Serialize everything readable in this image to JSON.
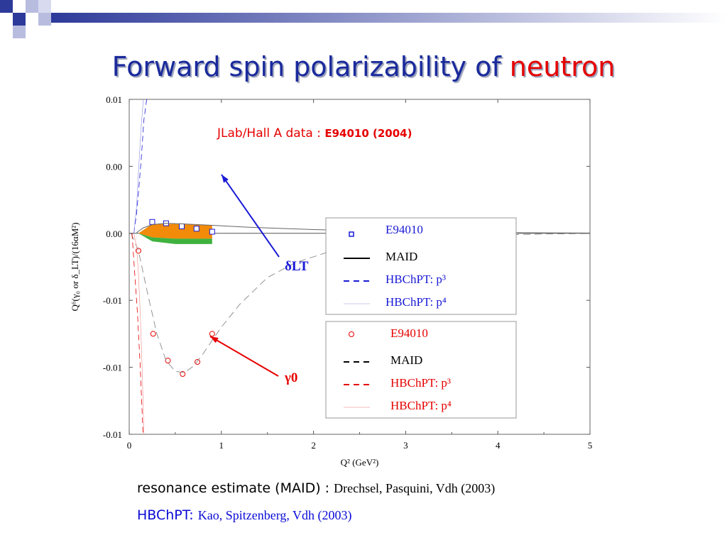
{
  "slide": {
    "title_main": "Forward spin polarizability of ",
    "title_highlight": "neutron",
    "credit_line1_key": "resonance estimate (MAID) : ",
    "credit_line1_value": "Drechsel, Pasquini, Vdh (2003)",
    "credit_line2_key": "HBChPT: ",
    "credit_line2_value": "Kao, Spitzenberg, Vdh (2003)"
  },
  "colors": {
    "title": "#1a2a9c",
    "title_highlight": "#e60000",
    "delta_series": "#1a1ad6",
    "gamma_series": "#e60000",
    "band_orange": "#f28a0a",
    "band_green": "#3fb23f"
  },
  "chart_data": {
    "type": "line",
    "annotation_title_a": "JLab/Hall A data : ",
    "annotation_title_b": "E94010 (2004)",
    "xlabel": "Q² (GeV²)",
    "ylabel": "Q⁶(γ₀ or δ_LT)/(16αM²)",
    "xlim": [
      0,
      5
    ],
    "ylim": [
      -0.015,
      0.01
    ],
    "x_ticks": [
      0,
      1,
      2,
      3,
      4,
      5
    ],
    "y_ticks": [
      {
        "value": 0.01,
        "label": "0.01"
      },
      {
        "value": 0.005,
        "label": "0.00"
      },
      {
        "value": 0.0,
        "label": "0.00"
      },
      {
        "value": -0.005,
        "label": "-0.01"
      },
      {
        "value": -0.01,
        "label": "-0.01"
      },
      {
        "value": -0.015,
        "label": "-0.01"
      }
    ],
    "arrow_labels": {
      "delta": "δLT",
      "gamma": "γ0"
    },
    "series": [
      {
        "name": "E94010",
        "group": "delta",
        "kind": "points",
        "marker": "square",
        "x": [
          0.25,
          0.4,
          0.57,
          0.73,
          0.9
        ],
        "y": [
          0.00085,
          0.00075,
          0.00052,
          0.00035,
          0.00012
        ]
      },
      {
        "name": "MAID",
        "group": "delta",
        "kind": "line",
        "x": [
          0.08,
          0.15,
          0.25,
          0.4,
          0.6,
          0.9,
          1.3,
          2.0,
          3.0,
          4.0,
          5.0
        ],
        "y": [
          5e-05,
          0.0004,
          0.00065,
          0.00075,
          0.0007,
          0.0006,
          0.00045,
          0.00028,
          0.00012,
          5e-05,
          2e-05
        ]
      },
      {
        "name": "HBChPT: p³",
        "group": "delta",
        "kind": "dashed",
        "x": [
          0.05,
          0.08,
          0.1,
          0.13,
          0.16,
          0.2
        ],
        "y": [
          0.0,
          0.0015,
          0.003,
          0.0055,
          0.0085,
          0.0105
        ]
      },
      {
        "name": "HBChPT: p⁴",
        "group": "delta",
        "kind": "thin",
        "x": [
          0.05,
          0.08,
          0.1,
          0.13,
          0.16
        ],
        "y": [
          0.0,
          0.002,
          0.0045,
          0.008,
          0.0105
        ]
      },
      {
        "name": "E94010",
        "group": "gamma",
        "kind": "points",
        "marker": "circle",
        "x": [
          0.1,
          0.26,
          0.42,
          0.58,
          0.74,
          0.9
        ],
        "y": [
          -0.0013,
          -0.0075,
          -0.0095,
          -0.0105,
          -0.0096,
          -0.0075
        ]
      },
      {
        "name": "MAID",
        "group": "gamma",
        "kind": "dashed",
        "x": [
          0.02,
          0.1,
          0.2,
          0.3,
          0.4,
          0.5,
          0.6,
          0.7,
          0.8,
          0.9,
          1.0,
          1.2,
          1.5,
          1.8,
          2.2,
          2.6,
          3.0,
          3.5,
          4.0,
          4.5,
          5.0
        ],
        "y": [
          0.0,
          -0.0013,
          -0.0045,
          -0.0075,
          -0.0095,
          -0.0103,
          -0.0104,
          -0.0099,
          -0.009,
          -0.008,
          -0.007,
          -0.0053,
          -0.0033,
          -0.0022,
          -0.0013,
          -0.0008,
          -0.0005,
          -0.00025,
          -0.00012,
          -5e-05,
          -2e-05
        ]
      },
      {
        "name": "HBChPT: p³",
        "group": "gamma",
        "kind": "dashed",
        "x": [
          0.03,
          0.05,
          0.07,
          0.09,
          0.12,
          0.15
        ],
        "y": [
          0.0,
          -0.002,
          -0.004,
          -0.006,
          -0.01,
          -0.015
        ]
      },
      {
        "name": "HBChPT: p⁴",
        "group": "gamma",
        "kind": "thin",
        "x": [
          0.05,
          0.08,
          0.1,
          0.12,
          0.14,
          0.16
        ],
        "y": [
          0.0,
          -0.001,
          -0.003,
          -0.006,
          -0.01,
          -0.015
        ]
      }
    ],
    "bands": [
      {
        "color": "orange",
        "x_top": [
          0.1,
          0.25,
          0.5,
          0.9
        ],
        "y_top": [
          0.0,
          0.0007,
          0.0007,
          0.0006
        ],
        "x_bottom": [
          0.9,
          0.5,
          0.25,
          0.1
        ],
        "y_bottom": [
          -0.0004,
          -0.0004,
          -0.0003,
          0.0
        ]
      },
      {
        "color": "green",
        "x_top": [
          0.1,
          0.25,
          0.5,
          0.9
        ],
        "y_top": [
          0.0,
          -0.0003,
          -0.0004,
          -0.0004
        ],
        "x_bottom": [
          0.9,
          0.5,
          0.25,
          0.1
        ],
        "y_bottom": [
          -0.0008,
          -0.0008,
          -0.0006,
          0.0
        ]
      }
    ],
    "legends": [
      {
        "group": "delta",
        "text_color": "#1a1ad6",
        "entries": [
          "E94010",
          "MAID",
          "HBChPT: p³",
          "HBChPT: p⁴"
        ]
      },
      {
        "group": "gamma",
        "text_color": "#e60000",
        "entries": [
          "E94010",
          "MAID",
          "HBChPT: p³",
          "HBChPT: p⁴"
        ]
      }
    ]
  }
}
